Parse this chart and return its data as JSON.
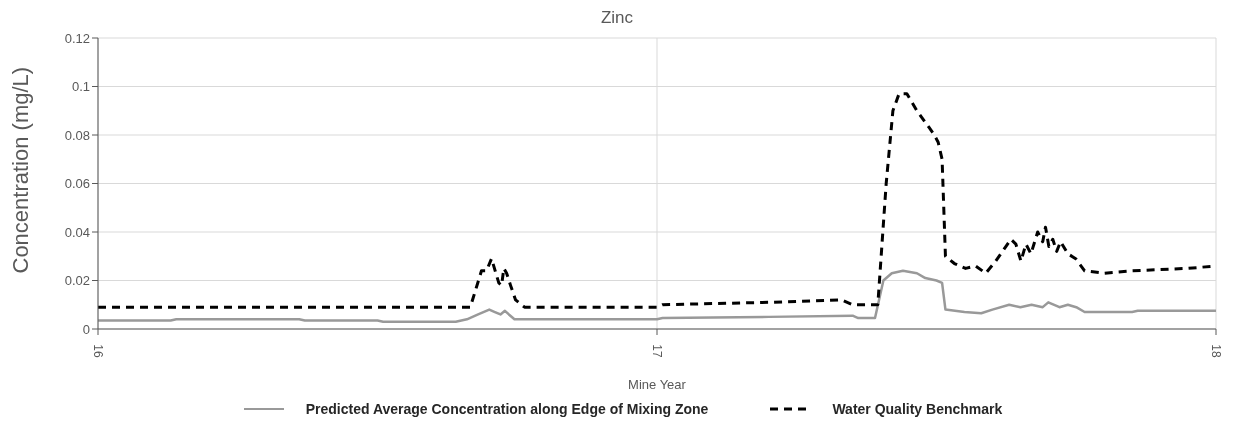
{
  "chart_data": {
    "type": "line",
    "title": "Zinc",
    "xlabel": "Mine Year",
    "ylabel": "Concentration (mg/L)",
    "xlim": [
      16,
      18
    ],
    "xticks": [
      16,
      17,
      18
    ],
    "ylim": [
      0,
      0.12
    ],
    "yticks": [
      0,
      0.02,
      0.04,
      0.06,
      0.08,
      {
        "value": 0.1,
        "label": "0.1"
      },
      0.12
    ],
    "grid": true,
    "legend": "bottom",
    "marker": "none",
    "series": [
      {
        "name": "Predicted Average Concentration along Edge of Mixing Zone",
        "color": "#999999",
        "line_style": "solid",
        "x": [
          16,
          16.13,
          16.14,
          16.36,
          16.37,
          16.5,
          16.51,
          16.64,
          16.66,
          16.68,
          16.7,
          16.71,
          16.72,
          16.728,
          16.735,
          16.745,
          17,
          17.01,
          17.2,
          17.35,
          17.36,
          17.39,
          17.405,
          17.42,
          17.44,
          17.465,
          17.48,
          17.5,
          17.51,
          17.516,
          17.55,
          17.58,
          17.6,
          17.63,
          17.65,
          17.67,
          17.69,
          17.7,
          17.72,
          17.735,
          17.75,
          17.765,
          17.85,
          17.86,
          18
        ],
        "values": [
          0.0035,
          0.0035,
          0.004,
          0.004,
          0.0035,
          0.0035,
          0.003,
          0.003,
          0.004,
          0.006,
          0.008,
          0.007,
          0.006,
          0.0075,
          0.006,
          0.004,
          0.004,
          0.0045,
          0.005,
          0.0055,
          0.0045,
          0.0045,
          0.02,
          0.023,
          0.024,
          0.023,
          0.021,
          0.02,
          0.019,
          0.008,
          0.007,
          0.0065,
          0.008,
          0.01,
          0.009,
          0.01,
          0.009,
          0.011,
          0.009,
          0.01,
          0.009,
          0.007,
          0.007,
          0.0075,
          0.0075
        ]
      },
      {
        "name": "Water Quality Benchmark",
        "color": "#000000",
        "line_style": "dashed",
        "x": [
          16,
          16.666,
          16.686,
          16.695,
          16.704,
          16.717,
          16.722,
          16.726,
          16.731,
          16.738,
          16.747,
          16.763,
          17,
          17.01,
          17.2,
          17.33,
          17.35,
          17.395,
          17.41,
          17.422,
          17.433,
          17.447,
          17.465,
          17.487,
          17.496,
          17.503,
          17.51,
          17.516,
          17.532,
          17.552,
          17.57,
          17.588,
          17.606,
          17.624,
          17.633,
          17.642,
          17.651,
          17.66,
          17.669,
          17.681,
          17.69,
          17.695,
          17.701,
          17.708,
          17.715,
          17.722,
          17.735,
          17.749,
          17.765,
          17.8,
          17.85,
          17.95,
          18
        ],
        "values": [
          0.009,
          0.009,
          0.024,
          0.024,
          0.029,
          0.019,
          0.018,
          0.025,
          0.023,
          0.018,
          0.012,
          0.009,
          0.009,
          0.01,
          0.011,
          0.012,
          0.01,
          0.01,
          0.06,
          0.09,
          0.097,
          0.097,
          0.09,
          0.083,
          0.08,
          0.077,
          0.07,
          0.03,
          0.027,
          0.025,
          0.026,
          0.023,
          0.028,
          0.034,
          0.037,
          0.035,
          0.028,
          0.035,
          0.031,
          0.04,
          0.036,
          0.042,
          0.034,
          0.037,
          0.032,
          0.036,
          0.031,
          0.029,
          0.024,
          0.023,
          0.024,
          0.025,
          0.026
        ]
      }
    ]
  }
}
